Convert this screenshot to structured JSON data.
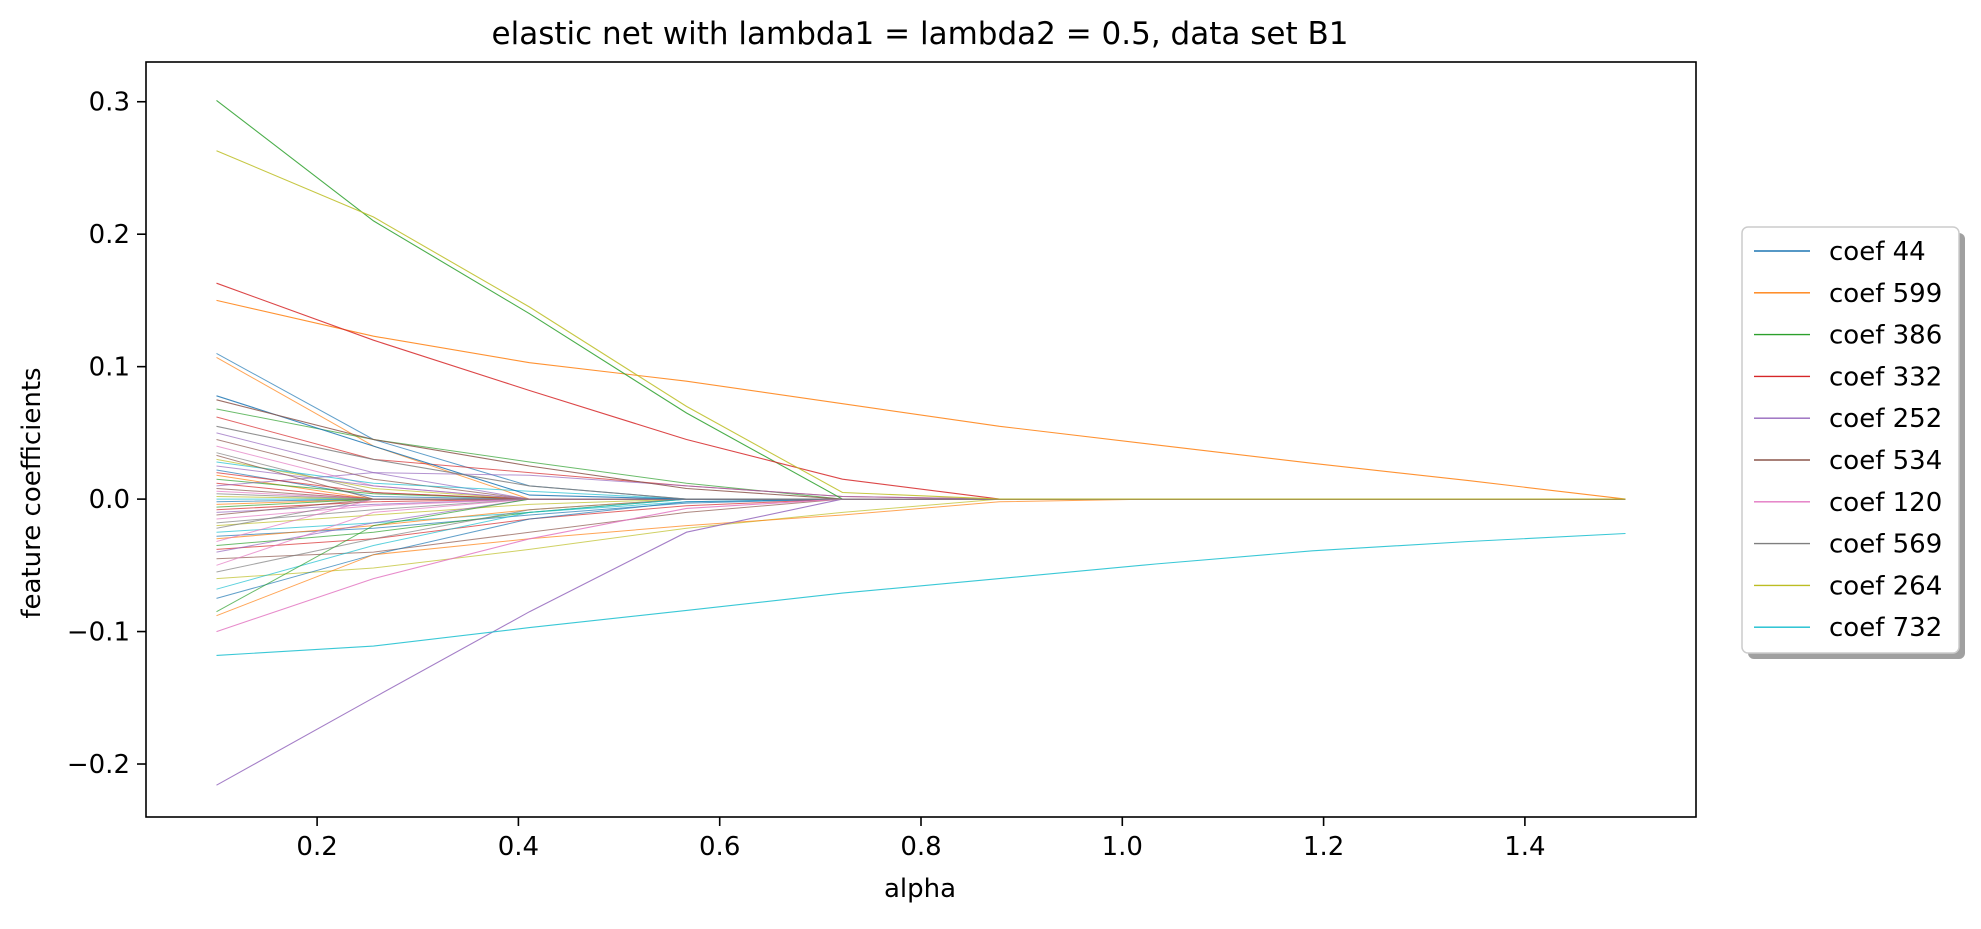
{
  "chart_data": {
    "type": "line",
    "title": "elastic net with lambda1 = lambda2 = 0.5, data set B1",
    "xlabel": "alpha",
    "ylabel": "feature coefficients",
    "xlim": [
      0.03,
      1.57
    ],
    "ylim": [
      -0.24,
      0.33
    ],
    "xticks": [
      0.2,
      0.4,
      0.6,
      0.8,
      1.0,
      1.2,
      1.4
    ],
    "xtick_labels": [
      "0.2",
      "0.4",
      "0.6",
      "0.8",
      "1.0",
      "1.2",
      "1.4"
    ],
    "yticks": [
      -0.2,
      -0.1,
      0.0,
      0.1,
      0.2,
      0.3
    ],
    "ytick_labels": [
      "−0.2",
      "−0.1",
      "0.0",
      "0.1",
      "0.2",
      "0.3"
    ],
    "grid": false,
    "legend_position": "right, outside plot (center)",
    "x": [
      0.1,
      0.256,
      0.411,
      0.567,
      0.722,
      0.878,
      1.033,
      1.189,
      1.344,
      1.5
    ],
    "series": [
      {
        "name": "coef 44",
        "color": "#1f77b4",
        "values": [
          0.078,
          0.04,
          0.003,
          0.0,
          0.0,
          0.0,
          0.0,
          0.0,
          0.0,
          0.0
        ]
      },
      {
        "name": "coef 599",
        "color": "#ff7f0e",
        "values": [
          0.15,
          0.123,
          0.103,
          0.089,
          0.072,
          0.055,
          0.041,
          0.027,
          0.014,
          0.0
        ]
      },
      {
        "name": "coef 386",
        "color": "#2ca02c",
        "values": [
          0.301,
          0.21,
          0.14,
          0.065,
          0.0,
          0.0,
          0.0,
          0.0,
          0.0,
          0.0
        ]
      },
      {
        "name": "coef 332",
        "color": "#d62728",
        "values": [
          0.163,
          0.12,
          0.082,
          0.045,
          0.015,
          0.0,
          0.0,
          0.0,
          0.0,
          0.0
        ]
      },
      {
        "name": "coef 252",
        "color": "#9467bd",
        "values": [
          -0.216,
          -0.15,
          -0.085,
          -0.025,
          0.0,
          0.0,
          0.0,
          0.0,
          0.0,
          0.0
        ]
      },
      {
        "name": "coef 534",
        "color": "#8c564b",
        "values": [
          0.075,
          0.045,
          0.025,
          0.008,
          0.0,
          0.0,
          0.0,
          0.0,
          0.0,
          0.0
        ]
      },
      {
        "name": "coef 120",
        "color": "#e377c2",
        "values": [
          -0.1,
          -0.06,
          -0.03,
          -0.007,
          0.0,
          0.0,
          0.0,
          0.0,
          0.0,
          0.0
        ]
      },
      {
        "name": "coef 569",
        "color": "#7f7f7f",
        "values": [
          0.055,
          0.03,
          0.01,
          0.0,
          0.0,
          0.0,
          0.0,
          0.0,
          0.0,
          0.0
        ]
      },
      {
        "name": "coef 264",
        "color": "#bcbd22",
        "values": [
          0.263,
          0.213,
          0.145,
          0.07,
          0.005,
          0.0,
          0.0,
          0.0,
          0.0,
          0.0
        ]
      },
      {
        "name": "coef 732",
        "color": "#17becf",
        "values": [
          -0.118,
          -0.111,
          -0.097,
          -0.084,
          -0.071,
          -0.06,
          -0.049,
          -0.039,
          -0.032,
          -0.026
        ]
      }
    ],
    "unlabeled_series_note_color_cycle": [
      "#1f77b4",
      "#ff7f0e",
      "#2ca02c",
      "#d62728",
      "#9467bd",
      "#8c564b",
      "#e377c2",
      "#7f7f7f",
      "#bcbd22",
      "#17becf"
    ],
    "unlabeled_series": [
      [
        0.11,
        0.045,
        0.01,
        0.0,
        0.0,
        0.0,
        0.0,
        0.0,
        0.0,
        0.0
      ],
      [
        0.107,
        0.04,
        0.0,
        0.0,
        0.0,
        0.0,
        0.0,
        0.0,
        0.0,
        0.0
      ],
      [
        0.068,
        0.045,
        0.028,
        0.012,
        0.0,
        0.0,
        0.0,
        0.0,
        0.0,
        0.0
      ],
      [
        0.062,
        0.03,
        0.02,
        0.01,
        0.002,
        0.0,
        0.0,
        0.0,
        0.0,
        0.0
      ],
      [
        0.05,
        0.02,
        0.0,
        0.0,
        0.0,
        0.0,
        0.0,
        0.0,
        0.0,
        0.0
      ],
      [
        0.045,
        0.015,
        0.0,
        0.0,
        0.0,
        0.0,
        0.0,
        0.0,
        0.0,
        0.0
      ],
      [
        0.04,
        0.01,
        0.0,
        0.0,
        0.0,
        0.0,
        0.0,
        0.0,
        0.0,
        0.0
      ],
      [
        0.035,
        0.005,
        0.0,
        0.0,
        0.0,
        0.0,
        0.0,
        0.0,
        0.0,
        0.0
      ],
      [
        0.03,
        0.008,
        0.0,
        0.0,
        0.0,
        0.0,
        0.0,
        0.0,
        0.0,
        0.0
      ],
      [
        0.028,
        0.012,
        0.006,
        0.0,
        0.0,
        0.0,
        0.0,
        0.0,
        0.0,
        0.0
      ],
      [
        0.022,
        0.002,
        0.0,
        0.0,
        0.0,
        0.0,
        0.0,
        0.0,
        0.0,
        0.0
      ],
      [
        0.018,
        0.0,
        0.0,
        0.0,
        0.0,
        0.0,
        0.0,
        0.0,
        0.0,
        0.0
      ],
      [
        0.015,
        0.004,
        0.0,
        0.0,
        0.0,
        0.0,
        0.0,
        0.0,
        0.0,
        0.0
      ],
      [
        0.012,
        0.0,
        0.0,
        0.0,
        0.0,
        0.0,
        0.0,
        0.0,
        0.0,
        0.0
      ],
      [
        0.01,
        0.02,
        0.018,
        0.01,
        0.002,
        0.0,
        0.0,
        0.0,
        0.0,
        0.0
      ],
      [
        0.008,
        0.0,
        0.0,
        0.0,
        0.0,
        0.0,
        0.0,
        0.0,
        0.0,
        0.0
      ],
      [
        0.006,
        0.0,
        0.0,
        0.0,
        0.0,
        0.0,
        0.0,
        0.0,
        0.0,
        0.0
      ],
      [
        0.004,
        0.0,
        0.0,
        0.0,
        0.0,
        0.0,
        0.0,
        0.0,
        0.0,
        0.0
      ],
      [
        0.002,
        0.0,
        0.0,
        0.0,
        0.0,
        0.0,
        0.0,
        0.0,
        0.0,
        0.0
      ],
      [
        0.0,
        0.0,
        0.0,
        0.0,
        0.0,
        0.0,
        0.0,
        0.0,
        0.0,
        0.0
      ],
      [
        -0.002,
        0.0,
        0.0,
        0.0,
        0.0,
        0.0,
        0.0,
        0.0,
        0.0,
        0.0
      ],
      [
        -0.004,
        0.0,
        0.0,
        0.0,
        0.0,
        0.0,
        0.0,
        0.0,
        0.0,
        0.0
      ],
      [
        -0.006,
        0.0,
        0.0,
        0.0,
        0.0,
        0.0,
        0.0,
        0.0,
        0.0,
        0.0
      ],
      [
        -0.008,
        -0.002,
        0.0,
        0.0,
        0.0,
        0.0,
        0.0,
        0.0,
        0.0,
        0.0
      ],
      [
        -0.01,
        -0.004,
        0.0,
        0.0,
        0.0,
        0.0,
        0.0,
        0.0,
        0.0,
        0.0
      ],
      [
        -0.012,
        0.0,
        0.0,
        0.0,
        0.0,
        0.0,
        0.0,
        0.0,
        0.0,
        0.0
      ],
      [
        -0.015,
        -0.005,
        0.0,
        0.0,
        0.0,
        0.0,
        0.0,
        0.0,
        0.0,
        0.0
      ],
      [
        -0.018,
        -0.008,
        0.0,
        0.0,
        0.0,
        0.0,
        0.0,
        0.0,
        0.0,
        0.0
      ],
      [
        -0.02,
        -0.012,
        -0.004,
        0.0,
        0.0,
        0.0,
        0.0,
        0.0,
        0.0,
        0.0
      ],
      [
        -0.025,
        -0.018,
        -0.01,
        -0.002,
        0.0,
        0.0,
        0.0,
        0.0,
        0.0,
        0.0
      ],
      [
        -0.028,
        -0.022,
        -0.012,
        -0.003,
        0.0,
        0.0,
        0.0,
        0.0,
        0.0,
        0.0
      ],
      [
        -0.03,
        -0.02,
        -0.008,
        0.0,
        0.0,
        0.0,
        0.0,
        0.0,
        0.0,
        0.0
      ],
      [
        -0.035,
        -0.025,
        -0.01,
        0.0,
        0.0,
        0.0,
        0.0,
        0.0,
        0.0,
        0.0
      ],
      [
        -0.038,
        -0.03,
        -0.015,
        -0.005,
        0.0,
        0.0,
        0.0,
        0.0,
        0.0,
        0.0
      ],
      [
        -0.04,
        -0.018,
        0.0,
        0.0,
        0.0,
        0.0,
        0.0,
        0.0,
        0.0,
        0.0
      ],
      [
        -0.045,
        -0.04,
        -0.025,
        -0.01,
        0.0,
        0.0,
        0.0,
        0.0,
        0.0,
        0.0
      ],
      [
        -0.05,
        -0.01,
        0.0,
        0.0,
        0.0,
        0.0,
        0.0,
        0.0,
        0.0,
        0.0
      ],
      [
        -0.055,
        -0.03,
        -0.008,
        0.0,
        0.0,
        0.0,
        0.0,
        0.0,
        0.0,
        0.0
      ],
      [
        -0.06,
        -0.052,
        -0.038,
        -0.022,
        -0.01,
        0.0,
        0.0,
        0.0,
        0.0,
        0.0
      ],
      [
        -0.068,
        -0.035,
        -0.01,
        0.0,
        0.0,
        0.0,
        0.0,
        0.0,
        0.0,
        0.0
      ],
      [
        -0.075,
        -0.042,
        -0.015,
        -0.002,
        0.0,
        0.0,
        0.0,
        0.0,
        0.0,
        0.0
      ],
      [
        -0.088,
        -0.042,
        -0.03,
        -0.02,
        -0.012,
        -0.002,
        0.0,
        0.0,
        0.0,
        0.0
      ],
      [
        -0.085,
        -0.02,
        0.0,
        0.0,
        0.0,
        0.0,
        0.0,
        0.0,
        0.0,
        0.0
      ],
      [
        0.02,
        0.005,
        0.0,
        0.0,
        0.0,
        0.0,
        0.0,
        0.0,
        0.0,
        0.0
      ],
      [
        0.025,
        0.01,
        0.0,
        0.0,
        0.0,
        0.0,
        0.0,
        0.0,
        0.0,
        0.0
      ],
      [
        0.033,
        0.0,
        0.0,
        0.0,
        0.0,
        0.0,
        0.0,
        0.0,
        0.0,
        0.0
      ],
      [
        -0.032,
        0.0,
        0.0,
        0.0,
        0.0,
        0.0,
        0.0,
        0.0,
        0.0,
        0.0
      ],
      [
        -0.022,
        0.0,
        0.0,
        0.0,
        0.0,
        0.0,
        0.0,
        0.0,
        0.0,
        0.0
      ]
    ]
  }
}
